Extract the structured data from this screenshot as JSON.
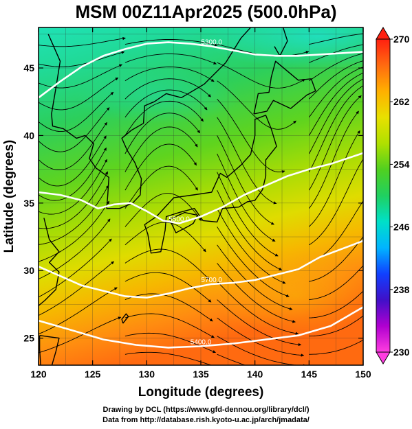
{
  "title": "MSM 00Z11Apr2025 (500.0hPa)",
  "x_axis": {
    "label": "Longitude (degrees)",
    "range": [
      120,
      150
    ],
    "ticks": [
      "120",
      "125",
      "130",
      "135",
      "140",
      "145",
      "150"
    ]
  },
  "y_axis": {
    "label": "Latitude  (degrees)",
    "range": [
      23,
      48
    ],
    "ticks": [
      "25",
      "30",
      "35",
      "40",
      "45"
    ]
  },
  "colorbar": {
    "range": [
      230,
      270
    ],
    "ticks": [
      "230",
      "238",
      "246",
      "254",
      "262",
      "270"
    ],
    "colors": [
      "#ff3de0",
      "#b000d0",
      "#4010c8",
      "#1040ff",
      "#00b4ff",
      "#00e0c8",
      "#20d060",
      "#50d020",
      "#b0e000",
      "#e8e000",
      "#ffb000",
      "#ff6a10",
      "#ff2010"
    ]
  },
  "contours": [
    {
      "label": "5400.0",
      "points": [
        [
          120,
          26.3
        ],
        [
          123,
          25.6
        ],
        [
          126,
          24.9
        ],
        [
          129,
          24.5
        ],
        [
          132,
          24.3
        ],
        [
          135,
          24.4
        ],
        [
          138,
          24.6
        ],
        [
          141,
          24.9
        ],
        [
          144,
          25.2
        ],
        [
          147,
          25.9
        ],
        [
          150,
          27.3
        ]
      ]
    },
    {
      "label": "5700.0",
      "points": [
        [
          120,
          30.3
        ],
        [
          122,
          29.6
        ],
        [
          124,
          28.9
        ],
        [
          126,
          28.5
        ],
        [
          128,
          28.1
        ],
        [
          130,
          28.0
        ],
        [
          132,
          28.3
        ],
        [
          134,
          28.7
        ],
        [
          136,
          29.0
        ],
        [
          138,
          29.1
        ],
        [
          140,
          29.3
        ],
        [
          142,
          29.7
        ],
        [
          144,
          30.1
        ],
        [
          146,
          31.0
        ],
        [
          148,
          31.6
        ],
        [
          150,
          32.2
        ]
      ]
    },
    {
      "label": "5500.0",
      "points": [
        [
          120,
          35.8
        ],
        [
          122,
          35.6
        ],
        [
          124,
          35.2
        ],
        [
          125.5,
          34.6
        ],
        [
          127,
          34.9
        ],
        [
          128.5,
          35.0
        ],
        [
          130,
          34.4
        ],
        [
          131.5,
          33.7
        ],
        [
          133,
          33.5
        ],
        [
          135,
          34.0
        ],
        [
          137,
          34.7
        ],
        [
          139,
          35.6
        ],
        [
          141,
          36.3
        ],
        [
          143,
          37.0
        ],
        [
          145,
          37.5
        ],
        [
          147,
          37.9
        ],
        [
          150,
          38.7
        ]
      ]
    },
    {
      "label": "5300.0",
      "points": [
        [
          120,
          42.8
        ],
        [
          122,
          44.0
        ],
        [
          124,
          45.1
        ],
        [
          126,
          45.9
        ],
        [
          128,
          46.4
        ],
        [
          130,
          46.8
        ],
        [
          132,
          46.9
        ],
        [
          134,
          46.8
        ],
        [
          136,
          46.6
        ],
        [
          138,
          46.3
        ],
        [
          140,
          46.0
        ],
        [
          142,
          45.9
        ],
        [
          144,
          45.9
        ],
        [
          146,
          46.0
        ],
        [
          148,
          46.1
        ],
        [
          150,
          46.2
        ]
      ]
    }
  ],
  "footer": {
    "line1": "Drawing by DCL (https://www.gfd-dennou.org/library/dcl/)",
    "line2": "Data from http://database.rish.kyoto-u.ac.jp/arch/jmadata/"
  }
}
